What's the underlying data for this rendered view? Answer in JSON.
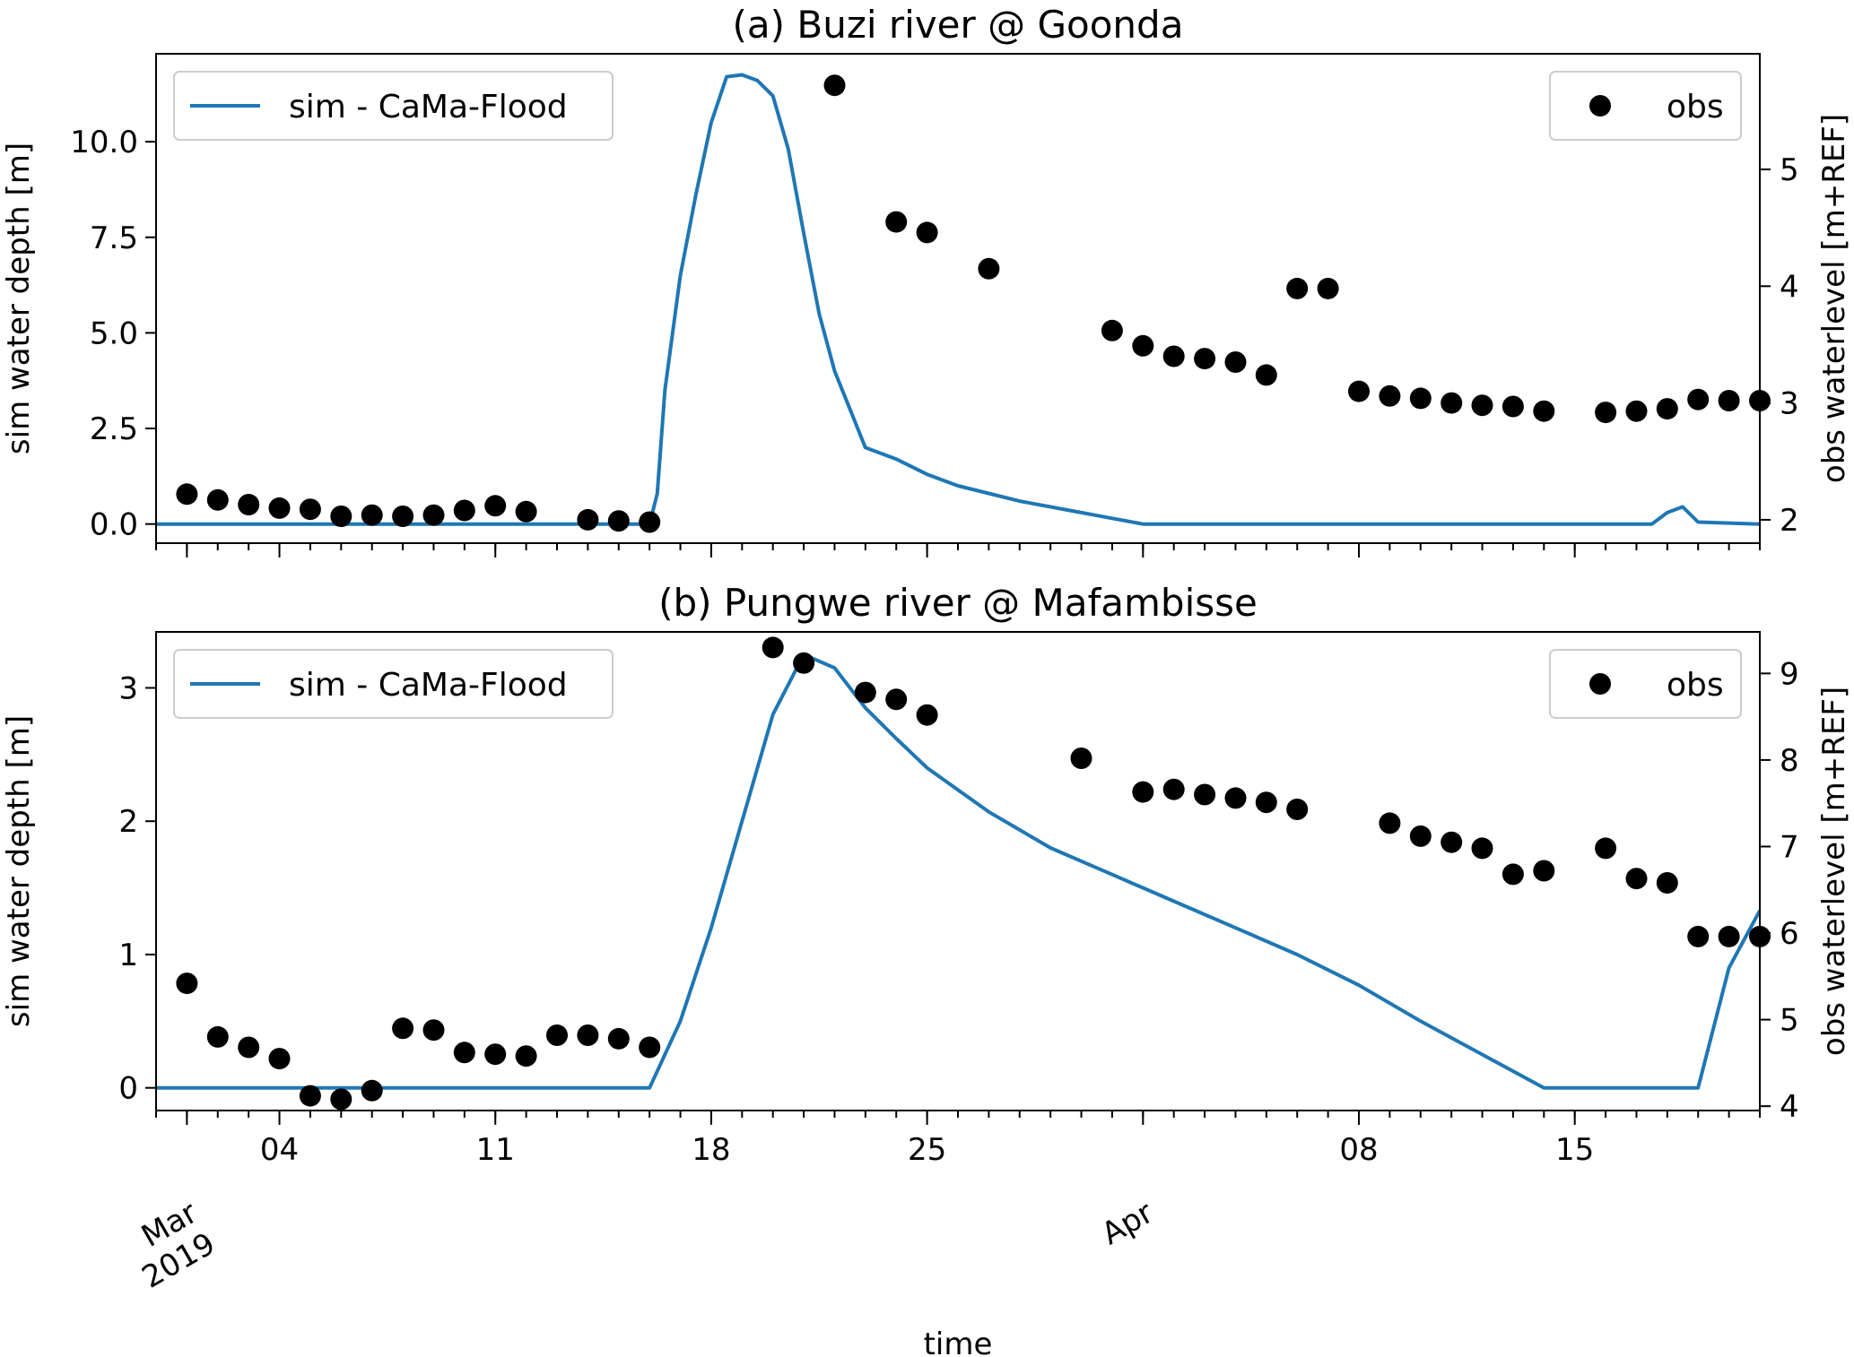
{
  "figure": {
    "xlabel": "time",
    "x_month_labels": [
      {
        "date": "2019-03-01",
        "lines": [
          "Mar",
          "2019"
        ]
      },
      {
        "date": "2019-04-01",
        "lines": [
          "Apr"
        ]
      }
    ],
    "x_day_ticks": [
      "04",
      "11",
      "18",
      "25",
      "08",
      "15"
    ],
    "x_day_tick_dates": [
      "2019-03-04",
      "2019-03-11",
      "2019-03-18",
      "2019-03-25",
      "2019-04-08",
      "2019-04-15"
    ],
    "xlim": [
      "2019-02-28",
      "2019-04-21"
    ],
    "colors": {
      "sim": "#1f77b4",
      "obs": "#000000"
    }
  },
  "chart_data": [
    {
      "type": "line",
      "title": "(a) Buzi river @ Goonda",
      "xlabel": "time",
      "ylabel": "sim water depth [m]",
      "ylabel_right": "obs waterlevel [m+REF]",
      "ylim": [
        -0.5,
        12.3
      ],
      "ylim_right": [
        1.8,
        5.99
      ],
      "yticks": [
        0.0,
        2.5,
        5.0,
        7.5,
        10.0
      ],
      "ytick_labels": [
        "0.0",
        "2.5",
        "5.0",
        "7.5",
        "10.0"
      ],
      "yticks_right": [
        2,
        3,
        4,
        5
      ],
      "ytick_labels_right": [
        "2",
        "3",
        "4",
        "5"
      ],
      "legend_left": "sim - CaMa-Flood",
      "legend_right": "obs",
      "legend_placement": [
        "upper left",
        "upper right"
      ],
      "series": [
        {
          "name": "sim - CaMa-Flood",
          "axis": "left",
          "x": [
            "2019-02-28",
            "2019-03-16",
            "2019-03-16 06:00",
            "2019-03-16 12:00",
            "2019-03-17",
            "2019-03-17 12:00",
            "2019-03-18",
            "2019-03-18 12:00",
            "2019-03-19",
            "2019-03-19 12:00",
            "2019-03-20",
            "2019-03-20 12:00",
            "2019-03-21",
            "2019-03-21 12:00",
            "2019-03-22",
            "2019-03-22 12:00",
            "2019-03-23",
            "2019-03-24",
            "2019-03-25",
            "2019-03-26",
            "2019-03-27",
            "2019-03-28",
            "2019-03-29",
            "2019-03-30",
            "2019-03-31",
            "2019-04-01",
            "2019-04-17 12:00",
            "2019-04-18",
            "2019-04-18 12:00",
            "2019-04-19",
            "2019-04-21"
          ],
          "y": [
            0,
            0,
            0.8,
            3.5,
            6.5,
            8.6,
            10.5,
            11.7,
            11.75,
            11.6,
            11.2,
            9.8,
            7.6,
            5.5,
            4.0,
            3.0,
            2.0,
            1.7,
            1.3,
            1.0,
            0.8,
            0.6,
            0.45,
            0.3,
            0.15,
            0.0,
            0.0,
            0.3,
            0.45,
            0.05,
            0.0
          ]
        },
        {
          "name": "obs",
          "axis": "right",
          "x": [
            "2019-03-01",
            "2019-03-02",
            "2019-03-03",
            "2019-03-04",
            "2019-03-05",
            "2019-03-06",
            "2019-03-07",
            "2019-03-08",
            "2019-03-09",
            "2019-03-10",
            "2019-03-11",
            "2019-03-12",
            "2019-03-14",
            "2019-03-15",
            "2019-03-16",
            "2019-03-22",
            "2019-03-24",
            "2019-03-25",
            "2019-03-27",
            "2019-03-31",
            "2019-04-01",
            "2019-04-02",
            "2019-04-03",
            "2019-04-04",
            "2019-04-05",
            "2019-04-06",
            "2019-04-07",
            "2019-04-08",
            "2019-04-09",
            "2019-04-10",
            "2019-04-11",
            "2019-04-12",
            "2019-04-13",
            "2019-04-14",
            "2019-04-16",
            "2019-04-17",
            "2019-04-18",
            "2019-04-19",
            "2019-04-20",
            "2019-04-21"
          ],
          "y": [
            2.22,
            2.17,
            2.13,
            2.1,
            2.09,
            2.03,
            2.04,
            2.03,
            2.04,
            2.08,
            2.12,
            2.07,
            2.0,
            1.99,
            1.98,
            5.72,
            4.55,
            4.46,
            4.15,
            3.62,
            3.49,
            3.4,
            3.38,
            3.35,
            3.24,
            3.98,
            3.98,
            3.1,
            3.06,
            3.04,
            3.0,
            2.98,
            2.97,
            2.93,
            2.92,
            2.93,
            2.95,
            3.03,
            3.02,
            3.02
          ]
        }
      ]
    },
    {
      "type": "line",
      "title": "(b) Pungwe river @ Mafambisse",
      "xlabel": "time",
      "ylabel": "sim water depth [m]",
      "ylabel_right": "obs waterlevel [m+REF]",
      "ylim": [
        -0.17,
        3.42
      ],
      "ylim_right": [
        3.95,
        9.48
      ],
      "yticks": [
        0,
        1,
        2,
        3
      ],
      "ytick_labels": [
        "0",
        "1",
        "2",
        "3"
      ],
      "yticks_right": [
        4,
        5,
        6,
        7,
        8,
        9
      ],
      "ytick_labels_right": [
        "4",
        "5",
        "6",
        "7",
        "8",
        "9"
      ],
      "legend_left": "sim - CaMa-Flood",
      "legend_right": "obs",
      "legend_placement": [
        "upper left",
        "upper right"
      ],
      "series": [
        {
          "name": "sim - CaMa-Flood",
          "axis": "left",
          "x": [
            "2019-02-28",
            "2019-03-16",
            "2019-03-17",
            "2019-03-18",
            "2019-03-19",
            "2019-03-20",
            "2019-03-21",
            "2019-03-22",
            "2019-03-23",
            "2019-03-24",
            "2019-03-25",
            "2019-03-27",
            "2019-03-29",
            "2019-03-31",
            "2019-04-02",
            "2019-04-04",
            "2019-04-06",
            "2019-04-08",
            "2019-04-10",
            "2019-04-12",
            "2019-04-14",
            "2019-04-19",
            "2019-04-20",
            "2019-04-21"
          ],
          "y": [
            0,
            0,
            0.5,
            1.2,
            2.0,
            2.8,
            3.25,
            3.15,
            2.85,
            2.62,
            2.4,
            2.07,
            1.8,
            1.6,
            1.4,
            1.2,
            1.0,
            0.77,
            0.5,
            0.25,
            0.0,
            0.0,
            0.9,
            1.33
          ]
        },
        {
          "name": "obs",
          "axis": "right",
          "x": [
            "2019-03-01",
            "2019-03-02",
            "2019-03-03",
            "2019-03-04",
            "2019-03-05",
            "2019-03-06",
            "2019-03-07",
            "2019-03-08",
            "2019-03-09",
            "2019-03-10",
            "2019-03-11",
            "2019-03-12",
            "2019-03-13",
            "2019-03-14",
            "2019-03-15",
            "2019-03-16",
            "2019-03-20",
            "2019-03-21",
            "2019-03-23",
            "2019-03-24",
            "2019-03-25",
            "2019-03-30",
            "2019-04-01",
            "2019-04-02",
            "2019-04-03",
            "2019-04-04",
            "2019-04-05",
            "2019-04-06",
            "2019-04-09",
            "2019-04-10",
            "2019-04-11",
            "2019-04-12",
            "2019-04-13",
            "2019-04-14",
            "2019-04-16",
            "2019-04-17",
            "2019-04-18",
            "2019-04-19",
            "2019-04-20",
            "2019-04-21"
          ],
          "y": [
            5.42,
            4.8,
            4.68,
            4.55,
            4.12,
            4.08,
            4.18,
            4.9,
            4.88,
            4.62,
            4.6,
            4.58,
            4.82,
            4.82,
            4.78,
            4.68,
            9.3,
            9.12,
            8.78,
            8.7,
            8.52,
            8.02,
            7.63,
            7.66,
            7.6,
            7.56,
            7.51,
            7.43,
            7.27,
            7.12,
            7.05,
            6.98,
            6.68,
            6.72,
            6.98,
            6.63,
            6.58,
            5.96,
            5.96,
            5.96
          ]
        }
      ]
    }
  ]
}
